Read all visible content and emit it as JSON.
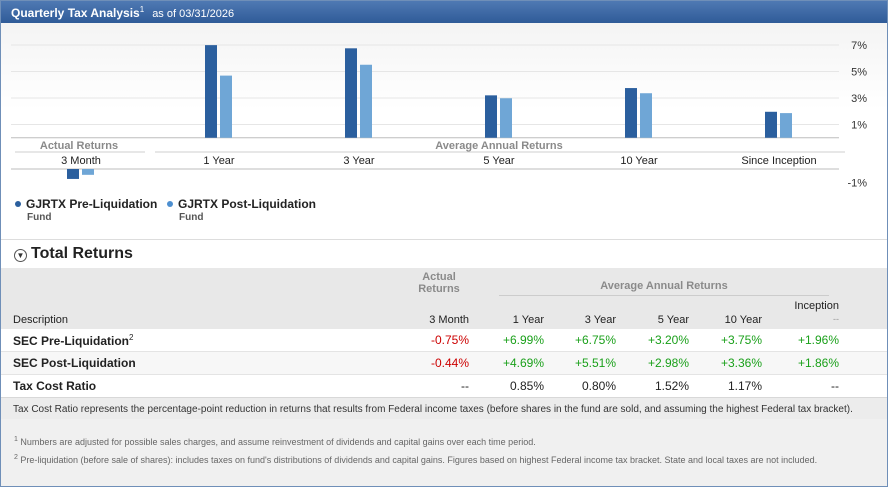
{
  "header": {
    "title": "Quarterly Tax Analysis",
    "title_sup": "1",
    "as_of": "as of 03/31/2026"
  },
  "colors": {
    "pre": "#2b5f9e",
    "post": "#6fa6d6",
    "title_bar": "#3a68a8",
    "negative": "#cc0000",
    "positive": "#1aa01a"
  },
  "chart_data": {
    "type": "bar",
    "categories": [
      "3 Month",
      "1 Year",
      "3 Year",
      "5 Year",
      "10 Year",
      "Since Inception"
    ],
    "group_labels": [
      "Actual Returns",
      "Average Annual Returns"
    ],
    "series": [
      {
        "name": "GJRTX Pre-Liquidation",
        "values": [
          -0.75,
          6.99,
          6.75,
          3.2,
          3.75,
          1.96
        ]
      },
      {
        "name": "GJRTX Post-Liquidation",
        "values": [
          -0.44,
          4.69,
          5.51,
          2.98,
          3.36,
          1.86
        ]
      }
    ],
    "y_ticks": [
      "7%",
      "5%",
      "3%",
      "1%",
      "-1%"
    ],
    "y_tick_values": [
      7,
      5,
      3,
      1,
      -1
    ],
    "ylim": [
      -1.3,
      7.2
    ],
    "grid": true,
    "legend_position": "bottom-left"
  },
  "legend": [
    {
      "name": "GJRTX Pre-Liquidation",
      "sub": "Fund"
    },
    {
      "name": "GJRTX Post-Liquidation",
      "sub": "Fund"
    }
  ],
  "total_returns": {
    "heading": "Total Returns",
    "actual_group": "Actual Returns",
    "avg_group": "Average Annual Returns",
    "columns": {
      "description": "Description",
      "m3": "3 Month",
      "y1": "1 Year",
      "y3": "3 Year",
      "y5": "5 Year",
      "y10": "10 Year",
      "inception": "Inception",
      "inception_sub": "--"
    },
    "rows": [
      {
        "label": "SEC Pre-Liquidation",
        "sup": "2",
        "m3": "-0.75%",
        "y1": "+6.99%",
        "y3": "+6.75%",
        "y5": "+3.20%",
        "y10": "+3.75%",
        "inception": "+1.96%"
      },
      {
        "label": "SEC Post-Liquidation",
        "sup": "",
        "m3": "-0.44%",
        "y1": "+4.69%",
        "y3": "+5.51%",
        "y5": "+2.98%",
        "y10": "+3.36%",
        "inception": "+1.86%"
      },
      {
        "label": "Tax Cost Ratio",
        "sup": "",
        "m3": "--",
        "y1": "0.85%",
        "y3": "0.80%",
        "y5": "1.52%",
        "y10": "1.17%",
        "inception": "--"
      }
    ]
  },
  "note": "Tax Cost Ratio represents the percentage-point reduction in returns that results from Federal income taxes (before shares in the fund are sold, and assuming the highest Federal tax bracket).",
  "footnotes": [
    {
      "num": "1",
      "text": "Numbers are adjusted for possible sales charges, and assume reinvestment of dividends and capital gains over each time period."
    },
    {
      "num": "2",
      "text": "Pre-liquidation (before sale of shares): includes taxes on fund's distributions of dividends and capital gains. Figures based on highest Federal income tax bracket. State and local taxes are not included."
    }
  ]
}
